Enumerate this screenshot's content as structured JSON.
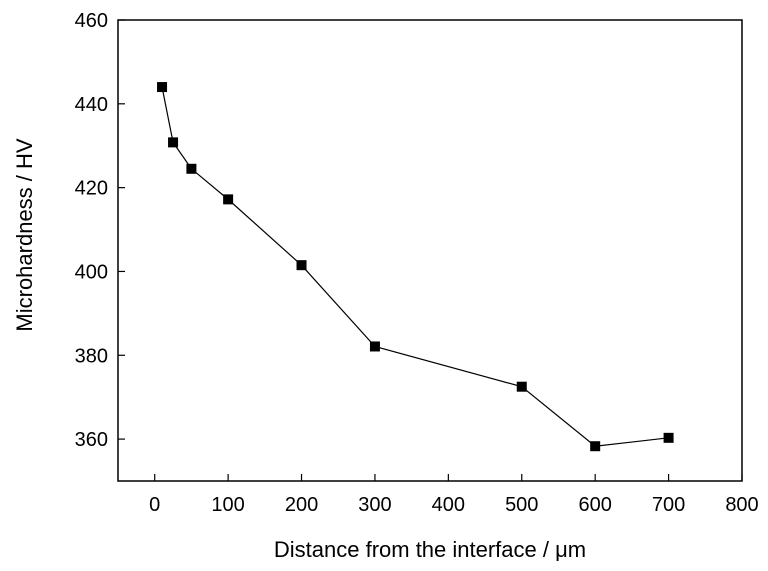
{
  "chart_data": {
    "type": "line",
    "title": "",
    "xlabel": "Distance from the interface / μm",
    "ylabel": "Microhardness / HV",
    "xlim": [
      -50,
      800
    ],
    "ylim": [
      350,
      460
    ],
    "xticks": [
      0,
      100,
      200,
      300,
      400,
      500,
      600,
      700,
      800
    ],
    "yticks": [
      360,
      380,
      400,
      420,
      440,
      460
    ],
    "grid": false,
    "legend": "none",
    "series": [
      {
        "marker": "square",
        "color": "#000000",
        "x": [
          10,
          25,
          50,
          100,
          200,
          300,
          500,
          600,
          700
        ],
        "y": [
          444,
          430.8,
          424.5,
          417.2,
          401.5,
          382.1,
          372.5,
          358.3,
          360.3
        ]
      }
    ]
  }
}
